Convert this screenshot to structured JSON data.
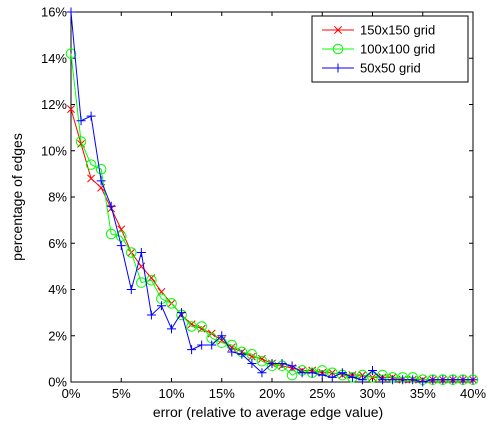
{
  "chart_data": {
    "type": "line",
    "title": "",
    "xlabel": "error (relative to average edge value)",
    "ylabel": "percentage of edges",
    "xlim": [
      0,
      40
    ],
    "ylim": [
      0,
      16
    ],
    "x_ticks": [
      0,
      5,
      10,
      15,
      20,
      25,
      30,
      35,
      40
    ],
    "x_tick_labels": [
      "0%",
      "5%",
      "10%",
      "15%",
      "20%",
      "25%",
      "30%",
      "35%",
      "40%"
    ],
    "y_ticks": [
      0,
      2,
      4,
      6,
      8,
      10,
      12,
      14,
      16
    ],
    "y_tick_labels": [
      "0%",
      "2%",
      "4%",
      "6%",
      "8%",
      "10%",
      "12%",
      "14%",
      "16%"
    ],
    "grid": false,
    "legend_position": "top-right",
    "x": [
      0,
      1,
      2,
      3,
      4,
      5,
      6,
      7,
      8,
      9,
      10,
      11,
      12,
      13,
      14,
      15,
      16,
      17,
      18,
      19,
      20,
      21,
      22,
      23,
      24,
      25,
      26,
      27,
      28,
      29,
      30,
      31,
      32,
      33,
      34,
      35,
      36,
      37,
      38,
      39,
      40
    ],
    "series": [
      {
        "name": "150x150 grid",
        "color": "#ff0000",
        "marker": "x",
        "values": [
          11.8,
          10.3,
          8.8,
          8.4,
          7.5,
          6.6,
          5.6,
          5.0,
          4.5,
          3.9,
          3.4,
          2.9,
          2.5,
          2.3,
          2.1,
          1.8,
          1.5,
          1.3,
          1.1,
          1.0,
          0.8,
          0.7,
          0.6,
          0.5,
          0.5,
          0.4,
          0.4,
          0.3,
          0.3,
          0.3,
          0.2,
          0.2,
          0.2,
          0.1,
          0.1,
          0.1,
          0.1,
          0.1,
          0.1,
          0.1,
          0.1
        ]
      },
      {
        "name": "100x100 grid",
        "color": "#00ff00",
        "marker": "o",
        "values": [
          14.2,
          10.4,
          9.4,
          9.2,
          6.4,
          6.3,
          5.6,
          4.3,
          4.4,
          3.6,
          3.4,
          2.9,
          2.4,
          2.4,
          1.9,
          1.7,
          1.6,
          1.3,
          1.2,
          0.9,
          0.7,
          0.7,
          0.3,
          0.5,
          0.4,
          0.5,
          0.4,
          0.3,
          0.2,
          0.3,
          0.2,
          0.3,
          0.2,
          0.2,
          0.2,
          0.1,
          0.1,
          0.1,
          0.1,
          0.1,
          0.1
        ]
      },
      {
        "name": "50x50 grid",
        "color": "#0000ff",
        "marker": "+",
        "values": [
          16.0,
          11.3,
          11.5,
          8.7,
          7.6,
          5.9,
          4.0,
          5.6,
          2.9,
          3.3,
          2.3,
          3.0,
          1.4,
          1.6,
          1.6,
          2.0,
          1.3,
          1.2,
          0.8,
          0.4,
          0.8,
          0.8,
          0.7,
          0.4,
          0.4,
          0.3,
          0.2,
          0.4,
          0.2,
          0.1,
          0.5,
          0.1,
          0.1,
          0.1,
          0.1,
          0.0,
          0.1,
          0.1,
          0.1,
          0.1,
          0.1
        ]
      }
    ]
  }
}
